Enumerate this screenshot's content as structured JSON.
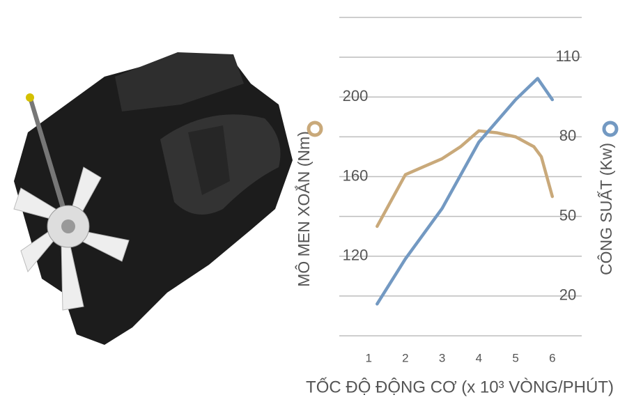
{
  "chart_data": {
    "type": "line",
    "x_label": "TỐC ĐỘ ĐỘNG CƠ (x 10³ VÒNG/PHÚT)",
    "xlim": [
      0.2,
      6.8
    ],
    "xticks": [
      1,
      2,
      3,
      4,
      5,
      6
    ],
    "ylim": [
      80,
      240
    ],
    "yticks": [
      120,
      160,
      200
    ],
    "y2lim": [
      5,
      125
    ],
    "y2ticks": [
      20,
      50,
      80,
      110
    ],
    "grid": true,
    "series": [
      {
        "name": "MÔ MEN XOẮN (Nm)",
        "color": "#c9a97a",
        "x": [
          1.23,
          2,
          2.5,
          3,
          3.5,
          4,
          4.5,
          5,
          5.5,
          5.7,
          6
        ],
        "values": [
          135,
          161,
          165,
          169,
          175,
          183,
          182,
          180,
          175,
          170,
          150
        ]
      },
      {
        "name": "CÔNG SUẤT (Kw)",
        "color": "#7399c2",
        "axis": "y2",
        "x": [
          1.23,
          2,
          3,
          4,
          5,
          5.6,
          6
        ],
        "values": [
          17,
          34,
          53,
          78,
          94,
          102,
          94
        ]
      }
    ]
  }
}
